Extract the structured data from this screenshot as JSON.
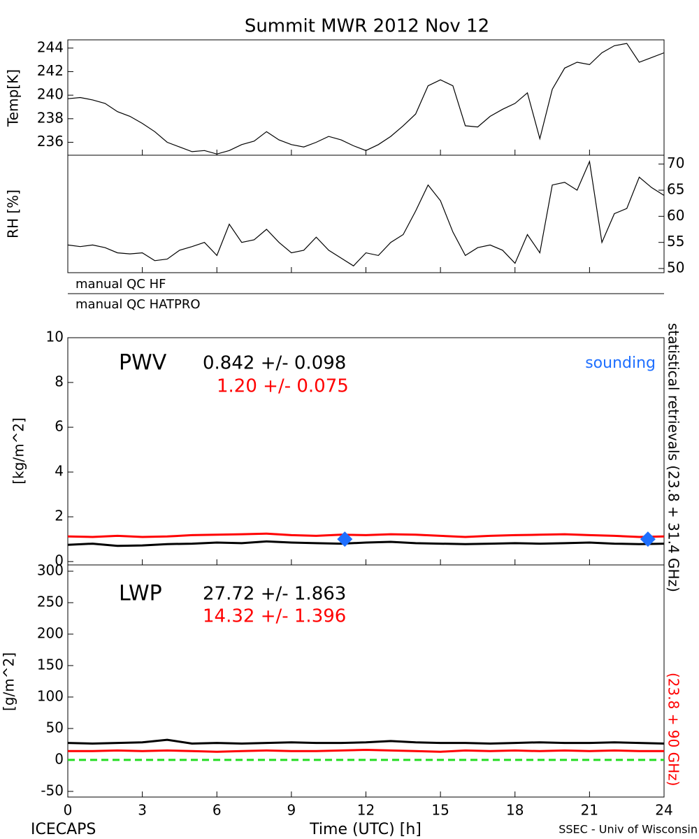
{
  "chart_data": [
    {
      "type": "line",
      "title": "Summit MWR 2012 Nov 12",
      "ylabel": "Temp[K]",
      "xlim": [
        0,
        24
      ],
      "ylim": [
        234.9,
        244.7
      ],
      "yticks": [
        236,
        238,
        240,
        242,
        244
      ],
      "yaxis_side": "left",
      "x": [
        0,
        0.5,
        1,
        1.5,
        2,
        2.5,
        3,
        3.5,
        4,
        4.5,
        5,
        5.5,
        6,
        6.5,
        7,
        7.5,
        8,
        8.5,
        9,
        9.5,
        10,
        10.5,
        11,
        11.5,
        12,
        12.5,
        13,
        13.5,
        14,
        14.5,
        15,
        15.5,
        16,
        16.5,
        17,
        17.5,
        18,
        18.5,
        19,
        19.5,
        20,
        20.5,
        21,
        21.5,
        22,
        22.5,
        23,
        23.5,
        24
      ],
      "series": [
        {
          "color": "#000000",
          "values": [
            239.7,
            239.8,
            239.6,
            239.3,
            238.6,
            238.2,
            237.6,
            236.9,
            236.0,
            235.6,
            235.2,
            235.3,
            235.0,
            235.3,
            235.8,
            236.1,
            236.9,
            236.2,
            235.8,
            235.6,
            236.0,
            236.5,
            236.2,
            235.7,
            235.3,
            235.8,
            236.5,
            237.4,
            238.4,
            240.8,
            241.3,
            240.8,
            237.4,
            237.3,
            238.2,
            238.8,
            239.3,
            240.2,
            236.3,
            240.5,
            242.3,
            242.8,
            242.6,
            243.6,
            244.2,
            244.4,
            242.8,
            243.2,
            243.6
          ]
        }
      ]
    },
    {
      "type": "line",
      "ylabel": "RH [%]",
      "qc_labels": [
        "manual QC HF",
        "manual QC HATPRO"
      ],
      "xlim": [
        0,
        24
      ],
      "ylim": [
        49.2,
        71.7
      ],
      "yticks": [
        50,
        55,
        60,
        65,
        70
      ],
      "yaxis_side": "right",
      "x": [
        0,
        0.5,
        1,
        1.5,
        2,
        2.5,
        3,
        3.5,
        4,
        4.5,
        5,
        5.5,
        6,
        6.5,
        7,
        7.5,
        8,
        8.5,
        9,
        9.5,
        10,
        10.5,
        11,
        11.5,
        12,
        12.5,
        13,
        13.5,
        14,
        14.5,
        15,
        15.5,
        16,
        16.5,
        17,
        17.5,
        18,
        18.5,
        19,
        19.5,
        20,
        20.5,
        21,
        21.5,
        22,
        22.5,
        23,
        23.5,
        24
      ],
      "series": [
        {
          "color": "#000000",
          "values": [
            54.5,
            54.2,
            54.5,
            54.0,
            53.0,
            52.8,
            53.0,
            51.5,
            51.8,
            53.5,
            54.2,
            55.0,
            52.5,
            58.5,
            55.0,
            55.5,
            57.5,
            55.0,
            53.0,
            53.5,
            56.0,
            53.5,
            52.0,
            50.5,
            53.0,
            52.5,
            55.0,
            56.5,
            61.0,
            66.0,
            63.0,
            57.0,
            52.5,
            54.0,
            54.5,
            53.5,
            51.0,
            56.5,
            53.0,
            66.0,
            66.5,
            65.0,
            70.5,
            55.0,
            60.5,
            61.5,
            67.5,
            65.5,
            64.0
          ]
        }
      ]
    },
    {
      "type": "line",
      "ylabel": "[kg/m^2]",
      "label": "PWV",
      "side_label": "statistical retrievals (23.8 + 31.4 GHz)",
      "xlim": [
        0,
        24
      ],
      "ylim": [
        -0.15,
        10
      ],
      "yticks": [
        0,
        2,
        4,
        6,
        8,
        10
      ],
      "yaxis_side": "left",
      "x": [
        0,
        1,
        2,
        3,
        4,
        5,
        6,
        7,
        8,
        9,
        10,
        11,
        12,
        13,
        14,
        15,
        16,
        17,
        18,
        19,
        20,
        21,
        22,
        23,
        24
      ],
      "series": [
        {
          "name": "0.842 +/- 0.098",
          "color": "#000000",
          "values": [
            0.75,
            0.8,
            0.7,
            0.72,
            0.78,
            0.8,
            0.85,
            0.82,
            0.9,
            0.85,
            0.82,
            0.8,
            0.85,
            0.88,
            0.82,
            0.8,
            0.78,
            0.8,
            0.82,
            0.8,
            0.82,
            0.85,
            0.8,
            0.78,
            0.8
          ]
        },
        {
          "name": "1.20 +/- 0.075",
          "color": "#ff0000",
          "values": [
            1.12,
            1.1,
            1.15,
            1.1,
            1.12,
            1.18,
            1.2,
            1.22,
            1.25,
            1.18,
            1.15,
            1.2,
            1.18,
            1.22,
            1.2,
            1.15,
            1.1,
            1.15,
            1.18,
            1.2,
            1.22,
            1.18,
            1.15,
            1.1,
            1.12
          ]
        },
        {
          "name": "sounding",
          "color": "#1e6fff",
          "marker": "diamond",
          "x": [
            11.15,
            23.35
          ],
          "values": [
            1.0,
            1.0
          ]
        }
      ]
    },
    {
      "type": "line",
      "ylabel": "[g/m^2]",
      "label": "LWP",
      "side_label": "(23.8 + 90 GHz)",
      "xlabel": "Time (UTC) [h]",
      "footer_left": "ICECAPS",
      "footer_right": "SSEC - Univ of Wisconsin",
      "xlim": [
        0,
        24
      ],
      "xticks": [
        0,
        3,
        6,
        9,
        12,
        15,
        18,
        21,
        24
      ],
      "ylim": [
        -59,
        310
      ],
      "yticks": [
        -50,
        0,
        50,
        100,
        150,
        200,
        250,
        300
      ],
      "yaxis_side": "left",
      "hline": {
        "value": 0,
        "color": "#22dd22"
      },
      "x": [
        0,
        1,
        2,
        3,
        4,
        5,
        6,
        7,
        8,
        9,
        10,
        11,
        12,
        13,
        14,
        15,
        16,
        17,
        18,
        19,
        20,
        21,
        22,
        23,
        24
      ],
      "series": [
        {
          "name": "27.72 +/- 1.863",
          "color": "#000000",
          "values": [
            27,
            26,
            27,
            28,
            32,
            26,
            27,
            26,
            27,
            28,
            27,
            27,
            28,
            30,
            28,
            27,
            27,
            26,
            27,
            28,
            27,
            27,
            28,
            27,
            26
          ]
        },
        {
          "name": "14.32 +/- 1.396",
          "color": "#ff0000",
          "values": [
            14,
            14,
            15,
            14,
            15,
            14,
            13,
            14,
            15,
            14,
            14,
            15,
            16,
            15,
            14,
            13,
            15,
            14,
            15,
            14,
            15,
            14,
            15,
            14,
            14
          ]
        }
      ]
    }
  ]
}
